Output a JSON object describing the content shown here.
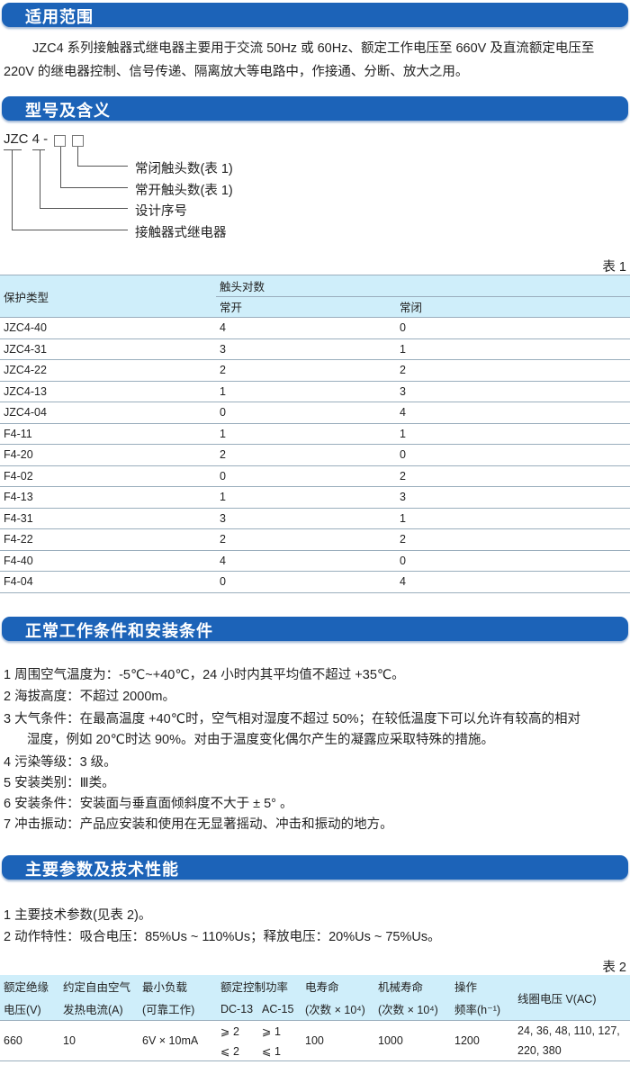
{
  "sections": {
    "scope": {
      "title": "适用范围",
      "line1": "JZC4 系列接触器式继电器主要用于交流 50Hz 或 60Hz、额定工作电压至 660V 及直流额定电压至",
      "line2": "220V 的继电器控制、信号传递、隔离放大等电路中，作接通、分断、放大之用。"
    },
    "model": {
      "title": "型号及含义",
      "code": "JZC 4 -",
      "labels": [
        "常闭触头数(表 1)",
        "常开触头数(表 1)",
        "设计序号",
        "接触器式继电器"
      ]
    },
    "conditions": {
      "title": "正常工作条件和安装条件",
      "items": [
        "1 周围空气温度为：-5℃~+40℃，24 小时内其平均值不超过 +35℃。",
        "2 海拔高度：不超过 2000m。",
        "3 大气条件：在最高温度 +40℃时，空气相对湿度不超过 50%；在较低温度下可以允许有较高的相对",
        "湿度，例如 20℃时达 90%。对由于温度变化偶尔产生的凝露应采取特殊的措施。",
        "4 污染等级：3 级。",
        "5 安装类别：Ⅲ类。",
        "6 安装条件：安装面与垂直面倾斜度不大于 ± 5° 。",
        "7 冲击振动：产品应安装和使用在无显著摇动、冲击和振动的地方。"
      ]
    },
    "params": {
      "title": "主要参数及技术性能",
      "items": [
        "1 主要技术参数(见表 2)。",
        "2 动作特性：吸合电压：85%Us ~ 110%Us；释放电压：20%Us ~ 75%Us。"
      ]
    }
  },
  "table1": {
    "caption": "表 1",
    "header": {
      "type": "保护类型",
      "group": "触头对数",
      "no": "常开",
      "nc": "常闭"
    },
    "rows": [
      [
        "JZC4-40",
        "4",
        "0"
      ],
      [
        "JZC4-31",
        "3",
        "1"
      ],
      [
        "JZC4-22",
        "2",
        "2"
      ],
      [
        "JZC4-13",
        "1",
        "3"
      ],
      [
        "JZC4-04",
        "0",
        "4"
      ],
      [
        "F4-11",
        "1",
        "1"
      ],
      [
        "F4-20",
        "2",
        "0"
      ],
      [
        "F4-02",
        "0",
        "2"
      ],
      [
        "F4-13",
        "1",
        "3"
      ],
      [
        "F4-31",
        "3",
        "1"
      ],
      [
        "F4-22",
        "2",
        "2"
      ],
      [
        "F4-40",
        "4",
        "0"
      ],
      [
        "F4-04",
        "0",
        "4"
      ]
    ]
  },
  "table2": {
    "caption": "表 2",
    "header1": [
      "额定绝缘",
      "约定自由空气",
      "最小负载",
      "额定控制功率",
      "电寿命",
      "机械寿命",
      "操作",
      "线圈电压 V(AC)"
    ],
    "header2": [
      "电压(V)",
      "发热电流(A)",
      "(可靠工作)",
      "DC-13",
      "AC-15",
      "(次数 × 10⁴)",
      "(次数 × 10⁴)",
      "频率(h⁻¹)"
    ],
    "row": {
      "voltage": "660",
      "current": "10",
      "min_load": "6V × 10mA",
      "dc13_a": "⩾ 2",
      "ac15_a": "⩾ 1",
      "dc13_b": "⩽ 2",
      "ac15_b": "⩽ 1",
      "elec_life": "100",
      "mech_life": "1000",
      "freq": "1200",
      "coil_1": "24, 36, 48, 110, 127,",
      "coil_2": "220, 380"
    }
  },
  "colors": {
    "bar": "#1c63b8",
    "table_header": "#cfeefa"
  }
}
